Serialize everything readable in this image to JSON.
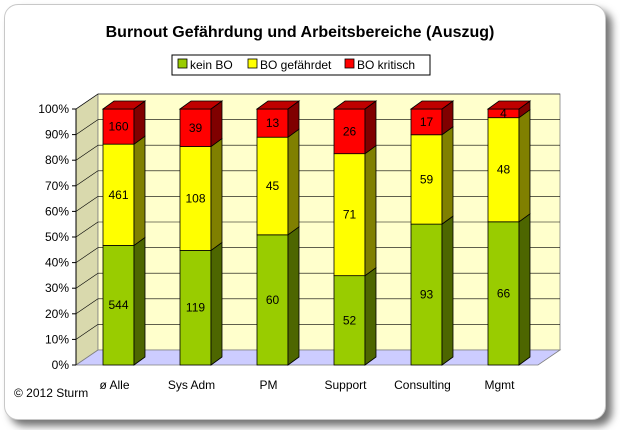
{
  "chart_data": {
    "type": "bar",
    "stacked": "percent",
    "title": "Burnout Gefährdung und Arbeitsbereiche (Auszug)",
    "categories": [
      "ø Alle",
      "Sys Adm",
      "PM",
      "Support",
      "Consulting",
      "Mgmt"
    ],
    "series": [
      {
        "name": "kein BO",
        "color": "#99cc00",
        "values": [
          544,
          119,
          60,
          52,
          93,
          66
        ]
      },
      {
        "name": "BO gefährdet",
        "color": "#ffff00",
        "values": [
          461,
          108,
          45,
          71,
          59,
          48
        ]
      },
      {
        "name": "BO kritisch",
        "color": "#ff0000",
        "values": [
          160,
          39,
          13,
          26,
          17,
          4
        ]
      }
    ],
    "y_ticks": [
      "0%",
      "10%",
      "20%",
      "30%",
      "40%",
      "50%",
      "60%",
      "70%",
      "80%",
      "90%",
      "100%"
    ],
    "ylim": [
      0,
      100
    ],
    "grid": true,
    "legend": "top",
    "wall_color": "#ffffcc",
    "floor_color": "#ccccff"
  },
  "copyright": "© 2012 Sturm"
}
